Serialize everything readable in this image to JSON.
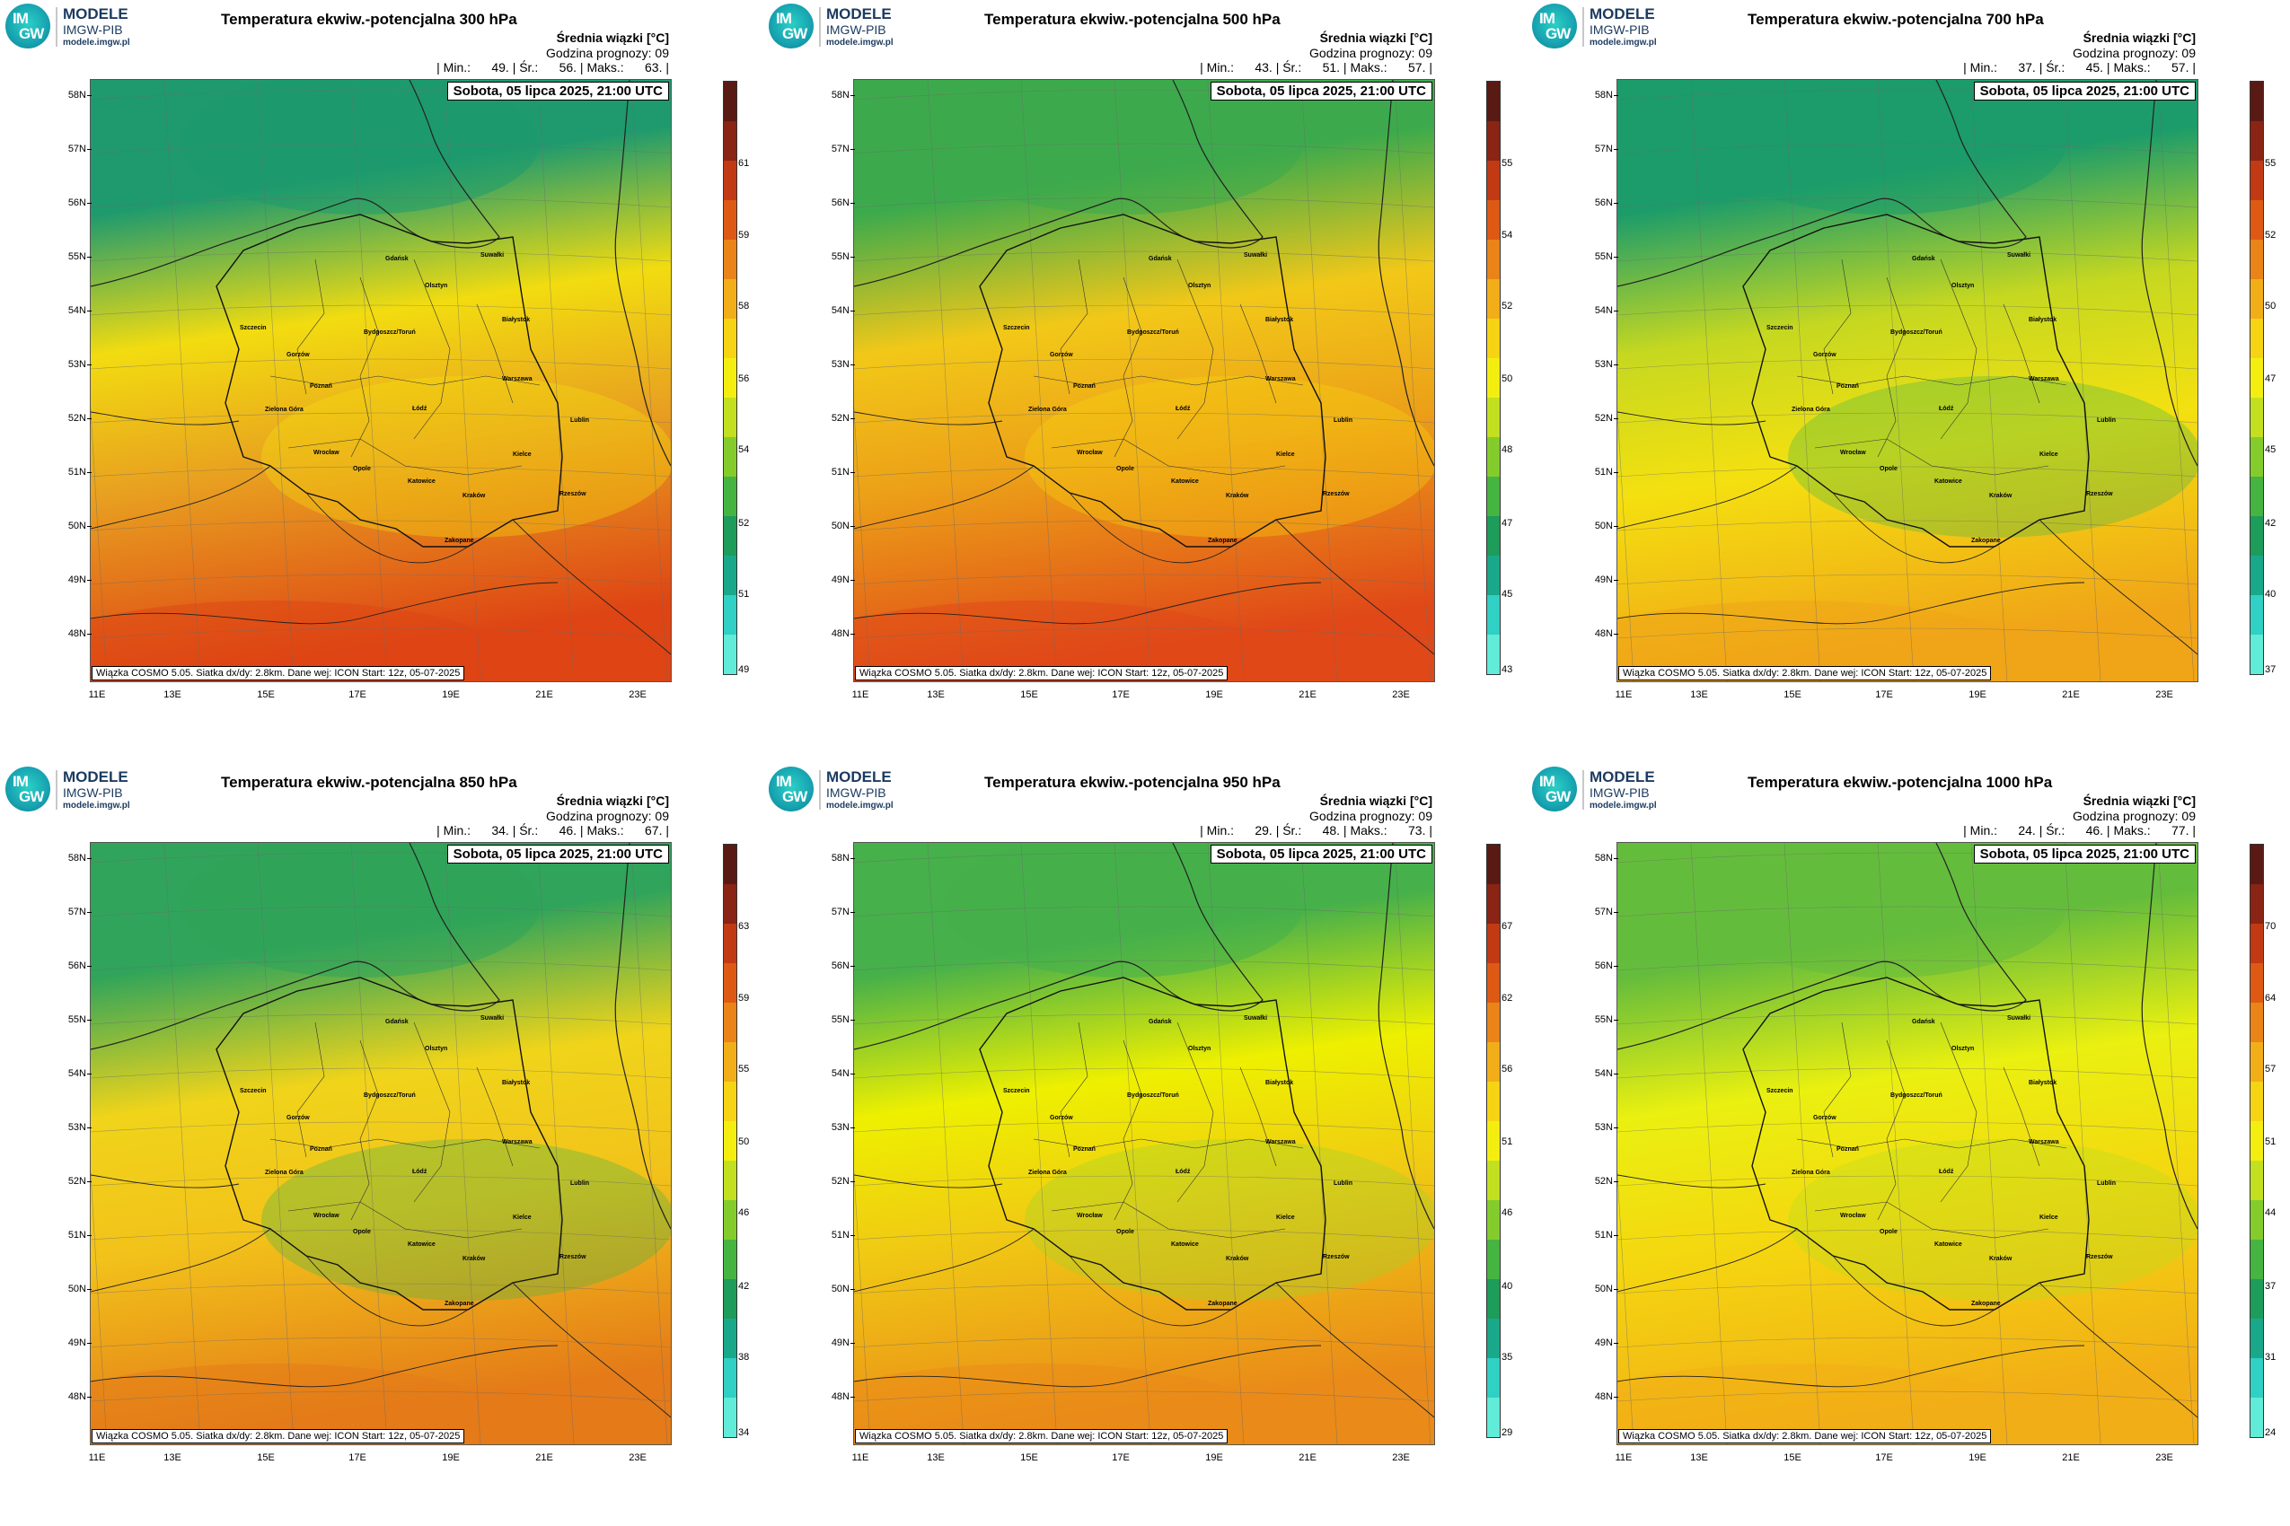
{
  "panels": [
    {
      "title": "Temperatura ekwiw.-potencjalna 300 hPa",
      "header_r1": "Średnia wiązki [°C]",
      "header_r2": "Godzina prognozy: 09",
      "stats": "| Min.:      49. | Śr.:      56. | Maks.:      63. |",
      "colorbar_ticks": [
        "61",
        "59",
        "58",
        "56",
        "54",
        "52",
        "51",
        "49"
      ],
      "colors": {
        "north": "#1e9a6e",
        "mid": "#f2dc10",
        "south": "#de4414",
        "bandc": "#e8a020",
        "band2": "#f6e20c"
      }
    },
    {
      "title": "Temperatura ekwiw.-potencjalna 500 hPa",
      "header_r1": "Średnia wiązki [°C]",
      "header_r2": "Godzina prognozy: 09",
      "stats": "| Min.:      43. | Śr.:      51. | Maks.:      57. |",
      "colorbar_ticks": [
        "55",
        "54",
        "52",
        "50",
        "48",
        "47",
        "45",
        "43"
      ],
      "colors": {
        "north": "#3caa4c",
        "mid": "#f2c818",
        "south": "#e04818",
        "bandc": "#eca018",
        "band2": "#f8d80e"
      }
    },
    {
      "title": "Temperatura ekwiw.-potencjalna 700 hPa",
      "header_r1": "Średnia wiązki [°C]",
      "header_r2": "Godzina prognozy: 09",
      "stats": "| Min.:      37. | Śr.:      45. | Maks.:      57. |",
      "colorbar_ticks": [
        "55",
        "52",
        "50",
        "47",
        "45",
        "42",
        "40",
        "37"
      ],
      "colors": {
        "north": "#1c9c6a",
        "mid": "#c6d820",
        "south": "#f0a418",
        "bandc": "#f4e010",
        "band2": "#48b848"
      }
    },
    {
      "title": "Temperatura ekwiw.-potencjalna 850 hPa",
      "header_r1": "Średnia wiązki [°C]",
      "header_r2": "Godzina prognozy: 09",
      "stats": "| Min.:      34. | Śr.:      46. | Maks.:      67. |",
      "colorbar_ticks": [
        "63",
        "59",
        "55",
        "50",
        "46",
        "42",
        "38",
        "34"
      ],
      "colors": {
        "north": "#30a45a",
        "mid": "#f0d41a",
        "south": "#e47a18",
        "bandc": "#f2c21a",
        "band2": "#48b448"
      }
    },
    {
      "title": "Temperatura ekwiw.-potencjalna 950 hPa",
      "header_r1": "Średnia wiązki [°C]",
      "header_r2": "Godzina prognozy: 09",
      "stats": "| Min.:      29. | Śr.:      48. | Maks.:      73. |",
      "colorbar_ticks": [
        "67",
        "62",
        "56",
        "51",
        "46",
        "40",
        "35",
        "29"
      ],
      "colors": {
        "north": "#46b04a",
        "mid": "#eef000",
        "south": "#ea8a18",
        "bandc": "#f0c814",
        "band2": "#9ed42a"
      }
    },
    {
      "title": "Temperatura ekwiw.-potencjalna 1000 hPa",
      "header_r1": "Średnia wiązki [°C]",
      "header_r2": "Godzina prognozy: 09",
      "stats": "| Min.:      24. | Śr.:      46. | Maks.:      77. |",
      "colorbar_ticks": [
        "70",
        "64",
        "57",
        "51",
        "44",
        "37",
        "31",
        "24"
      ],
      "colors": {
        "north": "#64bc3c",
        "mid": "#eaf010",
        "south": "#f2ae16",
        "bandc": "#f4d810",
        "band2": "#b8dc20"
      }
    }
  ],
  "common": {
    "logo_line1": "MODELE",
    "logo_line2": "IMGW-PIB",
    "logo_url": "modele.imgw.pl",
    "logo_im": "IM",
    "logo_gw": "GW",
    "date": "Sobota, 05 lipca 2025, 21:00 UTC",
    "footer": "Wiązka COSMO 5.05. Siatka dx/dy: 2.8km. Dane wej: ICON Start: 12z, 05-07-2025",
    "lat_labels": [
      "58N",
      "57N",
      "56N",
      "55N",
      "54N",
      "53N",
      "52N",
      "51N",
      "50N",
      "49N",
      "48N"
    ],
    "lon_labels": [
      "11E",
      "13E",
      "15E",
      "17E",
      "19E",
      "21E",
      "23E"
    ],
    "cities": [
      "Gdańsk",
      "Suwałki",
      "Olsztyn",
      "Białystok",
      "Szczecin",
      "Bydgoszcz/Toruń",
      "Gorzów",
      "Warszawa",
      "Poznań",
      "Zielona Góra",
      "Łódź",
      "Lublin",
      "Wrocław",
      "Kielce",
      "Opole",
      "Katowice",
      "Kraków",
      "Rzeszów",
      "Zakopane"
    ]
  }
}
